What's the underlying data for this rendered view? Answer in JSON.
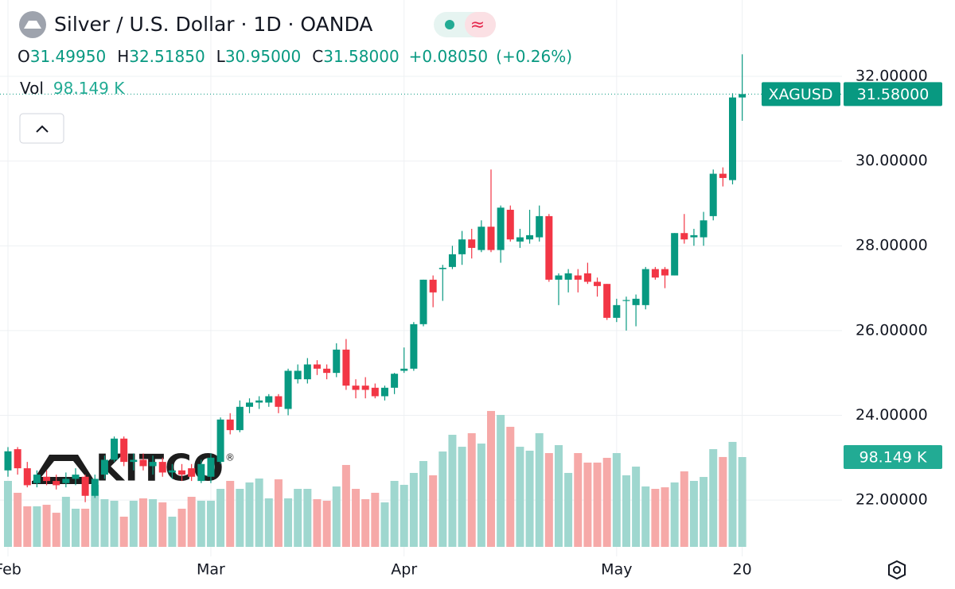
{
  "chart_data": {
    "type": "candlestick",
    "title": "Silver / U.S. Dollar · 1D · OANDA",
    "ohlc_header": [
      {
        "key": "O",
        "text": "31.49950"
      },
      {
        "key": "H",
        "text": "32.51850"
      },
      {
        "key": "L",
        "text": "30.95000"
      },
      {
        "key": "C",
        "text": "31.58000"
      }
    ],
    "change": "+0.08050",
    "change_percent": "(+0.26%)",
    "symbol": "XAGUSD",
    "last_price_label": "31.58000",
    "watermark": "KITCO",
    "watermark_mark": "®",
    "categories": [
      "Feb",
      null,
      null,
      null,
      null,
      null,
      null,
      null,
      null,
      null,
      null,
      null,
      null,
      null,
      null,
      null,
      null,
      null,
      null,
      null,
      null,
      "Mar",
      null,
      null,
      null,
      null,
      null,
      null,
      null,
      null,
      null,
      null,
      null,
      null,
      null,
      null,
      null,
      null,
      null,
      null,
      null,
      "Apr",
      null,
      null,
      null,
      null,
      null,
      null,
      null,
      null,
      null,
      null,
      null,
      null,
      null,
      null,
      null,
      null,
      null,
      null,
      null,
      null,
      null,
      "May",
      null,
      null,
      null,
      null,
      null,
      null,
      null,
      null,
      null,
      null,
      null,
      null,
      "20"
    ],
    "open": [
      22.7,
      23.2,
      22.75,
      22.4,
      22.55,
      22.45,
      22.4,
      22.5,
      22.55,
      22.1,
      22.6,
      22.95,
      23.45,
      22.9,
      22.95,
      22.8,
      22.9,
      22.65,
      22.7,
      22.75,
      22.45,
      22.55,
      22.9,
      23.9,
      23.65,
      24.2,
      24.3,
      24.3,
      24.45,
      24.15,
      24.85,
      24.85,
      25.2,
      25.1,
      25.0,
      25.55,
      24.7,
      24.7,
      24.65,
      24.45,
      24.65,
      25.05,
      25.1,
      26.15,
      27.2,
      27.45,
      27.5,
      27.8,
      28.15,
      27.9,
      28.45,
      27.9,
      28.85,
      28.1,
      28.15,
      28.2,
      28.7,
      27.2,
      27.2,
      27.3,
      27.35,
      27.15,
      27.1,
      26.3,
      26.7,
      26.6,
      26.6,
      27.45,
      27.45,
      27.3,
      28.3,
      28.2,
      28.2,
      28.7,
      29.7,
      29.55,
      31.4995
    ],
    "high": [
      23.25,
      23.25,
      22.9,
      22.7,
      22.7,
      22.6,
      22.65,
      22.75,
      22.6,
      22.6,
      23.05,
      23.5,
      23.5,
      23.1,
      23.1,
      23.05,
      23.0,
      22.85,
      22.85,
      22.85,
      22.95,
      23.1,
      23.95,
      24.05,
      24.35,
      24.4,
      24.45,
      24.5,
      24.5,
      25.1,
      25.2,
      25.35,
      25.3,
      25.2,
      25.7,
      25.8,
      24.85,
      24.9,
      24.75,
      24.7,
      25.0,
      25.6,
      26.2,
      27.2,
      27.3,
      27.55,
      28.0,
      28.35,
      28.4,
      28.6,
      29.8,
      28.95,
      28.95,
      28.4,
      28.85,
      28.95,
      28.75,
      27.35,
      27.45,
      27.45,
      27.6,
      27.25,
      27.1,
      26.75,
      26.8,
      26.85,
      27.5,
      27.5,
      27.5,
      28.3,
      28.75,
      28.4,
      28.8,
      29.8,
      29.85,
      31.6,
      32.5185
    ],
    "low": [
      22.55,
      22.6,
      22.3,
      22.3,
      22.35,
      22.25,
      22.3,
      22.35,
      21.95,
      22.05,
      22.5,
      22.9,
      22.8,
      22.7,
      22.7,
      22.6,
      22.55,
      22.5,
      22.45,
      22.45,
      22.4,
      22.4,
      22.85,
      23.55,
      23.6,
      24.05,
      24.15,
      24.2,
      24.05,
      24.0,
      24.75,
      24.75,
      24.95,
      24.85,
      24.9,
      24.6,
      24.4,
      24.4,
      24.4,
      24.35,
      24.5,
      25.0,
      25.05,
      26.1,
      26.55,
      26.7,
      27.45,
      27.55,
      27.7,
      27.85,
      27.85,
      27.6,
      28.1,
      27.95,
      28.05,
      28.1,
      27.15,
      26.6,
      26.9,
      26.9,
      27.1,
      26.8,
      26.25,
      26.2,
      26.0,
      26.1,
      26.5,
      27.2,
      27.0,
      27.3,
      28.05,
      28.0,
      28.0,
      28.6,
      29.4,
      29.45,
      30.95
    ],
    "close": [
      23.15,
      22.75,
      22.35,
      22.6,
      22.45,
      22.35,
      22.5,
      22.6,
      22.1,
      22.5,
      22.95,
      23.45,
      22.9,
      22.95,
      22.8,
      22.9,
      22.65,
      22.7,
      22.6,
      22.55,
      22.85,
      23.0,
      23.9,
      23.65,
      24.2,
      24.3,
      24.35,
      24.45,
      24.2,
      25.05,
      25.05,
      25.2,
      25.1,
      25.0,
      25.55,
      24.7,
      24.6,
      24.6,
      24.45,
      24.65,
      24.98,
      25.1,
      26.15,
      27.2,
      26.9,
      27.48,
      27.8,
      28.15,
      27.95,
      28.45,
      27.9,
      28.9,
      28.15,
      28.2,
      28.25,
      28.7,
      27.2,
      27.3,
      27.35,
      27.2,
      27.15,
      27.05,
      26.3,
      26.6,
      26.72,
      26.75,
      27.45,
      27.25,
      27.3,
      28.3,
      28.15,
      28.25,
      28.6,
      29.7,
      29.6,
      31.5,
      31.58
    ],
    "up_color": "#089981",
    "down_color": "#f23645",
    "volume": {
      "name": "Vol",
      "values": [
        72.1,
        59.1,
        44.3,
        44.3,
        46.0,
        37.3,
        54.7,
        41.7,
        41.7,
        67.8,
        52.1,
        50.4,
        33.0,
        50.4,
        53.0,
        52.1,
        48.6,
        33.0,
        41.7,
        54.7,
        50.4,
        50.4,
        63.4,
        72.1,
        63.4,
        70.4,
        74.7,
        53.0,
        73.8,
        53.0,
        63.4,
        63.4,
        52.1,
        50.4,
        66.0,
        89.5,
        63.4,
        52.1,
        59.1,
        48.6,
        72.1,
        67.8,
        80.8,
        93.8,
        78.2,
        104.2,
        122.5,
        109.4,
        124.2,
        112.9,
        148.5,
        144.2,
        131.2,
        109.4,
        105.1,
        124.2,
        102.5,
        111.2,
        80.8,
        102.5,
        92.1,
        92.1,
        97.3,
        102.5,
        78.2,
        87.7,
        66.0,
        63.4,
        65.1,
        70.4,
        82.5,
        72.1,
        76.4,
        106.8,
        98.2,
        114.7,
        98.149
      ],
      "value_labels": [
        null,
        null,
        null,
        null,
        null,
        null,
        null,
        null,
        null,
        null,
        null,
        null,
        null,
        null,
        null,
        null,
        null,
        null,
        null,
        null,
        null,
        null,
        null,
        null,
        null,
        null,
        null,
        null,
        null,
        null,
        null,
        null,
        null,
        null,
        null,
        null,
        null,
        null,
        null,
        null,
        null,
        null,
        null,
        null,
        null,
        null,
        null,
        null,
        null,
        null,
        null,
        null,
        null,
        null,
        null,
        null,
        null,
        null,
        null,
        null,
        null,
        null,
        null,
        null,
        null,
        null,
        null,
        null,
        null,
        null,
        null,
        null,
        null,
        null,
        null,
        null,
        "98.149 K"
      ],
      "up_color": "#9fd7cf",
      "down_color": "#f6a9a8",
      "tag_color": "#22ab94"
    },
    "ylim": [
      20.67,
      33.8
    ],
    "yticks": [
      {
        "value": 22,
        "label": "22.00000"
      },
      {
        "value": 24,
        "label": "24.00000"
      },
      {
        "value": 26,
        "label": "26.00000"
      },
      {
        "value": 28,
        "label": "28.00000"
      },
      {
        "value": 30,
        "label": "30.00000"
      },
      {
        "value": 32,
        "label": "32.00000"
      }
    ],
    "grid": true
  }
}
